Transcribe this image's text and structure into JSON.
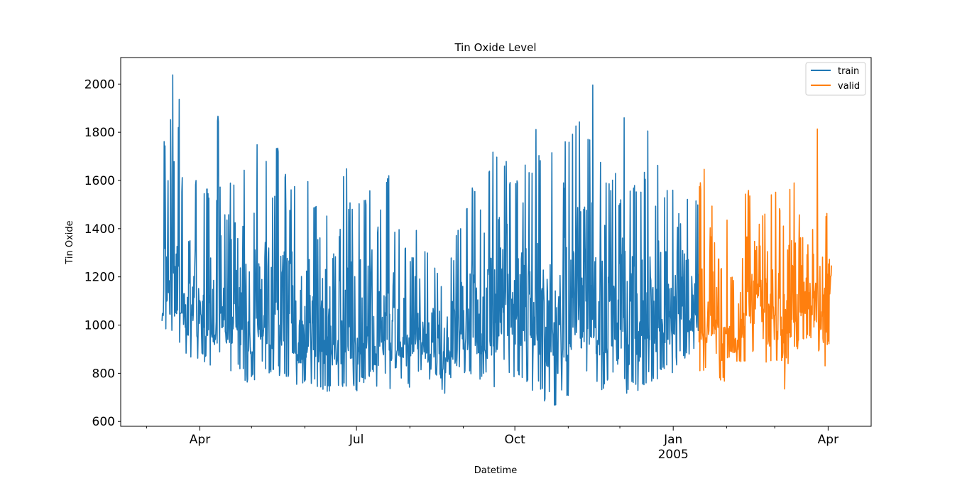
{
  "chart_data": {
    "type": "line",
    "title": "Tin Oxide Level",
    "xlabel": "Datetime",
    "ylabel": "Tin Oxide",
    "x_type": "date",
    "xlim": [
      "2004-02-15",
      "2005-04-26"
    ],
    "ylim": [
      580,
      2110
    ],
    "y_ticks": [
      600,
      800,
      1000,
      1200,
      1400,
      1600,
      1800,
      2000
    ],
    "x_ticks": [
      {
        "date": "2004-04-01",
        "label": "Apr",
        "sublabel": ""
      },
      {
        "date": "2004-07-01",
        "label": "Jul",
        "sublabel": ""
      },
      {
        "date": "2004-10-01",
        "label": "Oct",
        "sublabel": ""
      },
      {
        "date": "2005-01-01",
        "label": "Jan",
        "sublabel": "2005"
      },
      {
        "date": "2005-04-01",
        "label": "Apr",
        "sublabel": ""
      }
    ],
    "x_minor_ticks": [
      "2004-03-01",
      "2004-05-01",
      "2004-06-01",
      "2004-08-01",
      "2004-09-01",
      "2004-11-01",
      "2004-12-01",
      "2005-02-01",
      "2005-03-01",
      "2005-05-01"
    ],
    "legend": {
      "position": "top-right",
      "entries": [
        "train",
        "valid"
      ]
    },
    "grid": false,
    "series": [
      {
        "name": "train",
        "color": "#1f77b4",
        "x": [
          "2004-03-10",
          "2004-03-11",
          "2004-03-12",
          "2004-03-13",
          "2004-03-14",
          "2004-03-15",
          "2004-03-16",
          "2004-03-17",
          "2004-03-18",
          "2004-03-19",
          "2004-03-20",
          "2004-03-22",
          "2004-03-24",
          "2004-03-26",
          "2004-03-28",
          "2004-03-31",
          "2004-04-03",
          "2004-04-06",
          "2004-04-09",
          "2004-04-12",
          "2004-04-15",
          "2004-04-18",
          "2004-04-21",
          "2004-04-24",
          "2004-04-27",
          "2004-04-30",
          "2004-05-03",
          "2004-05-06",
          "2004-05-09",
          "2004-05-12",
          "2004-05-15",
          "2004-05-18",
          "2004-05-21",
          "2004-05-24",
          "2004-05-27",
          "2004-05-30",
          "2004-06-02",
          "2004-06-05",
          "2004-06-08",
          "2004-06-11",
          "2004-06-14",
          "2004-06-17",
          "2004-06-20",
          "2004-06-23",
          "2004-06-26",
          "2004-06-29",
          "2004-07-02",
          "2004-07-05",
          "2004-07-08",
          "2004-07-11",
          "2004-07-14",
          "2004-07-17",
          "2004-07-20",
          "2004-07-23",
          "2004-07-26",
          "2004-07-29",
          "2004-08-01",
          "2004-08-04",
          "2004-08-07",
          "2004-08-10",
          "2004-08-13",
          "2004-08-16",
          "2004-08-19",
          "2004-08-22",
          "2004-08-25",
          "2004-08-28",
          "2004-08-31",
          "2004-09-03",
          "2004-09-06",
          "2004-09-09",
          "2004-09-12",
          "2004-09-15",
          "2004-09-18",
          "2004-09-21",
          "2004-09-24",
          "2004-09-27",
          "2004-09-30",
          "2004-10-03",
          "2004-10-06",
          "2004-10-09",
          "2004-10-12",
          "2004-10-15",
          "2004-10-18",
          "2004-10-21",
          "2004-10-24",
          "2004-10-27",
          "2004-10-30",
          "2004-11-02",
          "2004-11-05",
          "2004-11-08",
          "2004-11-11",
          "2004-11-14",
          "2004-11-17",
          "2004-11-20",
          "2004-11-23",
          "2004-11-26",
          "2004-11-29",
          "2004-12-02",
          "2004-12-05",
          "2004-12-08",
          "2004-12-11",
          "2004-12-14",
          "2004-12-17",
          "2004-12-20",
          "2004-12-23",
          "2004-12-26",
          "2004-12-29",
          "2005-01-01",
          "2005-01-04",
          "2005-01-07",
          "2005-01-10",
          "2005-01-13",
          "2005-01-16"
        ],
        "high": [
          1190,
          1780,
          1840,
          1620,
          1550,
          1900,
          2040,
          1700,
          1980,
          1850,
          1950,
          1620,
          1560,
          1700,
          1600,
          1330,
          1580,
          1560,
          1870,
          1600,
          1460,
          1620,
          1730,
          1680,
          1640,
          1500,
          1770,
          1630,
          1700,
          1550,
          1760,
          1640,
          1500,
          1580,
          1420,
          1400,
          1600,
          1500,
          1370,
          1470,
          1360,
          1300,
          1400,
          1650,
          1510,
          1500,
          1520,
          1530,
          1580,
          1410,
          1480,
          1630,
          1550,
          1400,
          1350,
          1340,
          1280,
          1400,
          1330,
          1300,
          1250,
          1220,
          1180,
          1220,
          1280,
          1400,
          1470,
          1510,
          1580,
          1480,
          1390,
          1660,
          1720,
          1800,
          1700,
          1600,
          1620,
          1880,
          1700,
          1650,
          1850,
          1720,
          1660,
          1750,
          1640,
          1600,
          1770,
          1800,
          1870,
          1500,
          1820,
          2010,
          1700,
          1820,
          1600,
          1640,
          1520,
          1880,
          1600,
          1580,
          1560,
          1650,
          1850,
          1520,
          1680,
          1560,
          1570,
          1700,
          1790,
          1540,
          1520,
          1530,
          1520
        ],
        "low": [
          1010,
          910,
          830,
          1000,
          950,
          930,
          1020,
          920,
          880,
          870,
          890,
          860,
          850,
          840,
          830,
          870,
          840,
          820,
          750,
          880,
          830,
          800,
          830,
          780,
          760,
          770,
          800,
          820,
          780,
          780,
          790,
          770,
          760,
          760,
          740,
          760,
          730,
          740,
          730,
          730,
          720,
          750,
          740,
          720,
          720,
          720,
          750,
          760,
          780,
          730,
          770,
          780,
          730,
          720,
          780,
          740,
          800,
          790,
          800,
          760,
          800,
          780,
          710,
          780,
          760,
          810,
          800,
          790,
          790,
          770,
          790,
          720,
          740,
          780,
          820,
          800,
          780,
          740,
          760,
          720,
          750,
          700,
          680,
          720,
          650,
          700,
          660,
          730,
          760,
          800,
          760,
          760,
          730,
          720,
          740,
          780,
          710,
          760,
          700,
          740,
          720,
          740,
          760,
          760,
          800,
          810,
          800,
          830,
          860,
          860,
          870,
          880,
          860
        ]
      },
      {
        "name": "valid",
        "color": "#ff7f0e",
        "x": [
          "2005-01-16",
          "2005-01-19",
          "2005-01-22",
          "2005-01-25",
          "2005-01-28",
          "2005-01-31",
          "2005-02-03",
          "2005-02-06",
          "2005-02-09",
          "2005-02-12",
          "2005-02-15",
          "2005-02-18",
          "2005-02-21",
          "2005-02-24",
          "2005-02-27",
          "2005-03-02",
          "2005-03-05",
          "2005-03-08",
          "2005-03-11",
          "2005-03-14",
          "2005-03-17",
          "2005-03-20",
          "2005-03-23",
          "2005-03-26",
          "2005-03-29",
          "2005-04-01",
          "2005-04-02"
        ],
        "high": [
          1600,
          1690,
          1840,
          1560,
          1250,
          1450,
          1200,
          1090,
          1560,
          1560,
          1720,
          1850,
          1480,
          1320,
          1560,
          1500,
          1420,
          1570,
          1600,
          1720,
          1650,
          1680,
          1820,
          1550,
          1480,
          1530,
          1250
        ],
        "low": [
          810,
          790,
          800,
          850,
          760,
          860,
          830,
          850,
          840,
          940,
          880,
          940,
          930,
          840,
          930,
          840,
          720,
          840,
          900,
          900,
          940,
          930,
          980,
          880,
          820,
          810,
          1100
        ]
      }
    ]
  }
}
